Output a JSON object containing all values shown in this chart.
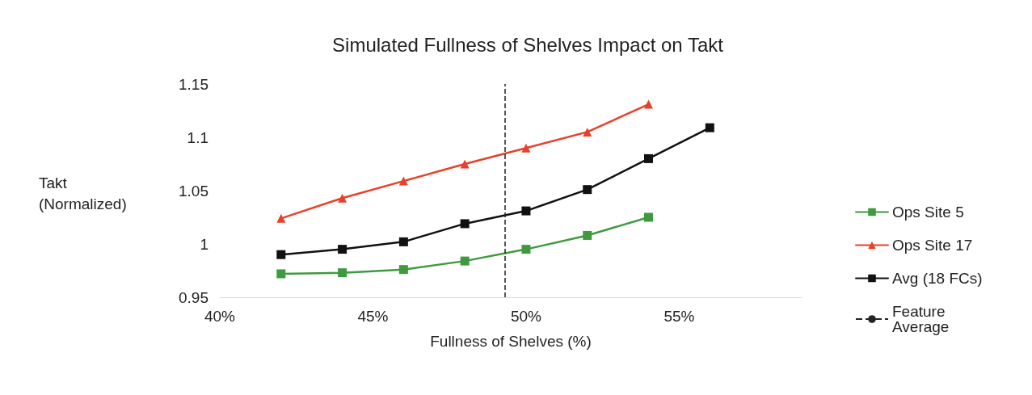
{
  "chart_data": {
    "type": "line",
    "title": "Simulated Fullness of Shelves Impact on Takt",
    "xlabel": "Fullness of Shelves (%)",
    "ylabel": "Takt (Normalized)",
    "x": [
      42,
      44,
      46,
      48,
      50,
      52,
      54,
      56
    ],
    "series": [
      {
        "name": "Ops Site 5",
        "color": "#3f9a3f",
        "marker": "square",
        "values": [
          0.972,
          0.973,
          0.976,
          0.984,
          0.995,
          1.008,
          1.025,
          null
        ]
      },
      {
        "name": "Ops Site 17",
        "color": "#e8412a",
        "marker": "triangle",
        "values": [
          1.024,
          1.043,
          1.059,
          1.075,
          1.09,
          1.105,
          1.131,
          null
        ]
      },
      {
        "name": "Avg (18 FCs)",
        "color": "#111111",
        "marker": "square",
        "values": [
          0.99,
          0.995,
          1.002,
          1.019,
          1.031,
          1.051,
          1.08,
          1.109
        ]
      }
    ],
    "ref_lines": [
      {
        "axis": "x",
        "value": 49.3,
        "label": "Feature Average",
        "color": "#222222",
        "line_style": "dashed"
      }
    ],
    "xlim": [
      40,
      59
    ],
    "xticks": [
      {
        "value": 40,
        "label": "40%"
      },
      {
        "value": 45,
        "label": "45%"
      },
      {
        "value": 50,
        "label": "50%"
      },
      {
        "value": 55,
        "label": "55%"
      }
    ],
    "ylim": [
      0.95,
      1.15
    ],
    "yticks": [
      0.95,
      1,
      1.05,
      1.1,
      1.15
    ],
    "grid": false,
    "legend": "right",
    "line_style": "solid"
  }
}
